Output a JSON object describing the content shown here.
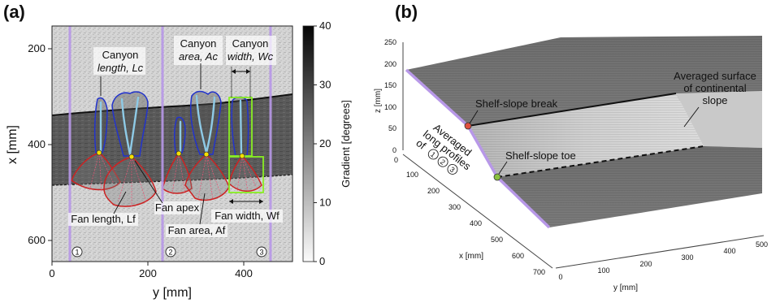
{
  "panel_a": {
    "label": "(a)",
    "x_axis_label": "y [mm]",
    "y_axis_label": "x [mm]",
    "x_ticks": [
      "0",
      "200",
      "400"
    ],
    "y_ticks": [
      "200",
      "400",
      "600"
    ],
    "colorbar": {
      "label": "Gradient [degrees]",
      "ticks": [
        "40",
        "30",
        "20",
        "10",
        "0"
      ],
      "min": 0,
      "max": 40
    },
    "annotations": {
      "canyon_length_1": "Canyon",
      "canyon_length_2": "length, Lc",
      "canyon_area_1": "Canyon",
      "canyon_area_2": "area, Ac",
      "canyon_width_1": "Canyon",
      "canyon_width_2": "width, Wc",
      "fan_apex": "Fan apex",
      "fan_length": "Fan length, Lf",
      "fan_area": "Fan area, Af",
      "fan_width": "Fan width, Wf"
    },
    "profile_labels": [
      "1",
      "2",
      "3"
    ],
    "colors": {
      "canyon_outline": "#2233cc",
      "fan_outline": "#cc2222",
      "profile_line": "#b898e8",
      "apex": "#f5e000",
      "box": "#88ee22",
      "thalweg": "#8ecae6"
    }
  },
  "panel_b": {
    "label": "(b)",
    "z_axis_label": "z [mm]",
    "z_ticks": [
      "0",
      "50",
      "100",
      "150",
      "200",
      "250"
    ],
    "x_axis_label": "x [mm]",
    "x_ticks": [
      "0",
      "100",
      "200",
      "300",
      "400",
      "500",
      "600",
      "700"
    ],
    "y_axis_label": "y [mm]",
    "y_ticks": [
      "0",
      "100",
      "200",
      "300",
      "400",
      "500"
    ],
    "annotations": {
      "shelf_break": "Shelf-slope break",
      "shelf_toe": "Shelf-slope toe",
      "avg_surface_1": "Averaged surface",
      "avg_surface_2": "of continental",
      "avg_surface_3": "slope",
      "avg_long_1": "Averaged",
      "avg_long_2": "long profiles",
      "avg_long_3": "of"
    },
    "profile_labels": [
      "1",
      "2",
      "3"
    ],
    "colors": {
      "profile_line": "#b898e8",
      "break_point": "#e05040",
      "toe_point": "#8ac040"
    }
  }
}
